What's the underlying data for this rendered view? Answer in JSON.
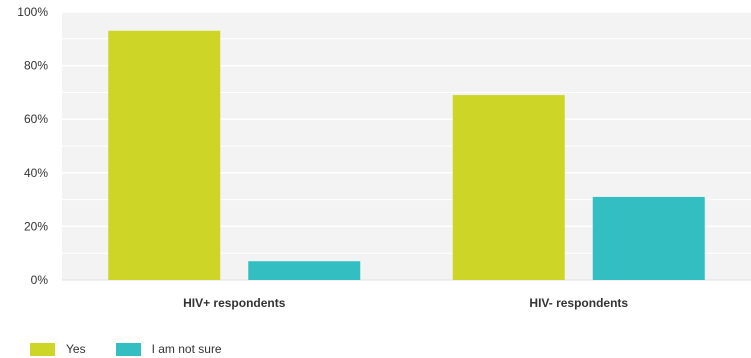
{
  "chart_data": {
    "type": "bar",
    "title": "",
    "xlabel": "",
    "ylabel": "",
    "categories": [
      "HIV+ respondents",
      "HIV- respondents"
    ],
    "series": [
      {
        "name": "Yes",
        "values": [
          93,
          69
        ],
        "color": "#cdd627"
      },
      {
        "name": "I am not sure",
        "values": [
          7,
          31
        ],
        "color": "#33bfc2"
      }
    ],
    "yticks": [
      "0%",
      "20%",
      "40%",
      "60%",
      "80%",
      "100%"
    ],
    "ylim": [
      0,
      100
    ],
    "grid": true,
    "plot_background": "#f3f3f3",
    "legend_position": "bottom-left"
  }
}
